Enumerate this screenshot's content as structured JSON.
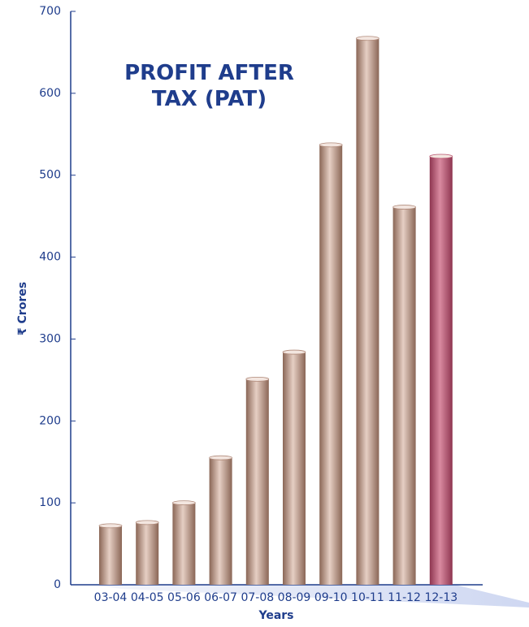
{
  "chart_data": {
    "type": "bar",
    "title": "PROFIT AFTER TAX (PAT)",
    "xlabel": "Years",
    "ylabel": "₹ Crores",
    "categories": [
      "03-04",
      "04-05",
      "05-06",
      "06-07",
      "07-08",
      "08-09",
      "09-10",
      "10-11",
      "11-12",
      "12-13"
    ],
    "values": [
      72,
      76,
      100,
      155,
      251,
      284,
      537,
      667,
      461,
      523
    ],
    "colors": [
      "#b08a7a",
      "#b08a7a",
      "#b08a7a",
      "#b08a7a",
      "#b08a7a",
      "#b08a7a",
      "#b08a7a",
      "#b08a7a",
      "#b08a7a",
      "#b8536e"
    ],
    "ylim": [
      0,
      700
    ],
    "yticks": [
      0,
      100,
      200,
      300,
      400,
      500,
      600,
      700
    ],
    "grid": false
  }
}
